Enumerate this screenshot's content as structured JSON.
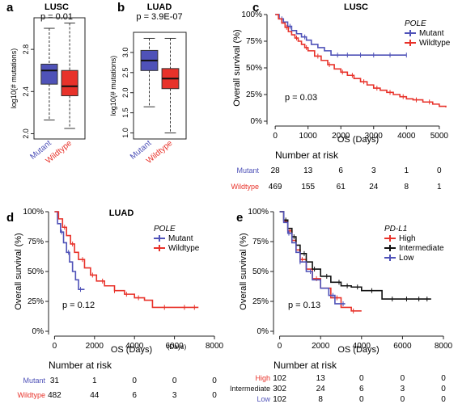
{
  "colors": {
    "mutant": "#4f52b8",
    "wildtype": "#e8322a",
    "high": "#e8322a",
    "intermediate": "#111111",
    "low": "#4f52b8",
    "axis": "#222222"
  },
  "chart_data": [
    {
      "id": "a",
      "panel_label": "a",
      "type": "box",
      "title": "LUSC",
      "subtitle": "p = 0.01",
      "ylabel": "log10(# mutations)",
      "categories": [
        "Mutant",
        "Wildtype"
      ],
      "yticks": [
        2.0,
        2.4,
        2.8
      ],
      "ylim": [
        1.95,
        3.1
      ],
      "boxes": [
        {
          "name": "Mutant",
          "whisker_low": 2.13,
          "q1": 2.47,
          "median": 2.6,
          "q3": 2.66,
          "whisker_high": 3.0
        },
        {
          "name": "Wildtype",
          "whisker_low": 2.05,
          "q1": 2.36,
          "median": 2.45,
          "q3": 2.6,
          "whisker_high": 3.05
        }
      ]
    },
    {
      "id": "b",
      "panel_label": "b",
      "type": "box",
      "title": "LUAD",
      "subtitle": "p = 3.9E-07",
      "ylabel": "log10(# mutations)",
      "categories": [
        "Mutant",
        "Wildtype"
      ],
      "yticks": [
        1.0,
        1.5,
        2.0,
        2.5,
        3.0
      ],
      "ylim": [
        0.85,
        3.5
      ],
      "boxes": [
        {
          "name": "Mutant",
          "whisker_low": 1.65,
          "q1": 2.55,
          "median": 2.8,
          "q3": 3.05,
          "whisker_high": 3.35
        },
        {
          "name": "Wildtype",
          "whisker_low": 1.0,
          "q1": 2.1,
          "median": 2.35,
          "q3": 2.6,
          "whisker_high": 3.35
        }
      ]
    },
    {
      "id": "c",
      "panel_label": "c",
      "type": "line",
      "title": "LUSC",
      "xlabel": "OS (Days)",
      "ylabel": "Overall survival (%)",
      "xticks": [
        0,
        1000,
        2000,
        3000,
        4000,
        5000
      ],
      "yticks": [
        "0%",
        "25%",
        "50%",
        "75%",
        "100%"
      ],
      "xlim": [
        -250,
        5300
      ],
      "ylim": [
        0,
        100
      ],
      "pvalue": "p = 0.03",
      "legend": {
        "title": "POLE",
        "position": "top-right"
      },
      "series": [
        {
          "name": "Mutant",
          "color_key": "mutant",
          "x": [
            0,
            120,
            250,
            380,
            500,
            650,
            800,
            950,
            1100,
            1300,
            1500,
            1700,
            4000
          ],
          "y": [
            100,
            96,
            93,
            89,
            85,
            82,
            79,
            76,
            72,
            69,
            66,
            62,
            62
          ],
          "censor_x": [
            200,
            450,
            900,
            1900,
            2200,
            2600,
            3000,
            3500,
            4000
          ]
        },
        {
          "name": "Wildtype",
          "color_key": "wildtype",
          "x": [
            0,
            100,
            200,
            300,
            400,
            500,
            600,
            700,
            800,
            900,
            1000,
            1200,
            1400,
            1600,
            1800,
            2000,
            2200,
            2400,
            2600,
            2800,
            3000,
            3200,
            3400,
            3600,
            3800,
            4000,
            4200,
            4500,
            4800,
            5000,
            5200
          ],
          "y": [
            100,
            96,
            92,
            88,
            84,
            81,
            78,
            75,
            72,
            69,
            66,
            61,
            57,
            53,
            49,
            46,
            43,
            40,
            37,
            34,
            31,
            29,
            27,
            25,
            23,
            21,
            20,
            18,
            16,
            14,
            13
          ],
          "censor_x": [
            350,
            650,
            950,
            1300,
            1650,
            2050,
            2350,
            2700,
            3100,
            3500,
            3900,
            4300,
            4700
          ]
        }
      ],
      "risk_table": {
        "title": "Number at risk",
        "rows": [
          {
            "label": "Mutant",
            "color_key": "mutant",
            "values": [
              "28",
              "13",
              "6",
              "3",
              "1",
              "0"
            ]
          },
          {
            "label": "Wildtype",
            "color_key": "wildtype",
            "values": [
              "469",
              "155",
              "61",
              "24",
              "8",
              "1"
            ]
          }
        ]
      }
    },
    {
      "id": "d",
      "panel_label": "d",
      "type": "line",
      "title": "LUAD",
      "xlabel": "OS (Days)",
      "xlabel_extra": "(Days)",
      "ylabel": "Overall survival (%)",
      "xticks": [
        0,
        2000,
        4000,
        6000,
        8000
      ],
      "yticks": [
        "0%",
        "25%",
        "50%",
        "75%",
        "100%"
      ],
      "xlim": [
        -300,
        8000
      ],
      "ylim": [
        0,
        100
      ],
      "pvalue": "p = 0.12",
      "legend": {
        "title": "POLE",
        "position": "top-right"
      },
      "series": [
        {
          "name": "Mutant",
          "color_key": "mutant",
          "x": [
            0,
            150,
            300,
            450,
            600,
            750,
            900,
            1050,
            1200,
            1500
          ],
          "y": [
            100,
            90,
            83,
            74,
            66,
            58,
            50,
            43,
            35,
            35
          ],
          "censor_x": [
            350,
            700,
            1300
          ]
        },
        {
          "name": "Wildtype",
          "color_key": "wildtype",
          "x": [
            0,
            200,
            400,
            600,
            800,
            1000,
            1200,
            1500,
            1800,
            2100,
            2500,
            3000,
            3500,
            4000,
            4500,
            4900,
            7200
          ],
          "y": [
            100,
            94,
            87,
            80,
            73,
            66,
            60,
            53,
            47,
            42,
            38,
            34,
            31,
            28,
            26,
            20,
            20
          ],
          "censor_x": [
            500,
            900,
            1400,
            1900,
            2400,
            3000,
            3600,
            4200,
            5500,
            6500,
            7000
          ]
        }
      ],
      "risk_table": {
        "title": "Number at risk",
        "rows": [
          {
            "label": "Mutant",
            "color_key": "mutant",
            "values": [
              "31",
              "1",
              "0",
              "0",
              "0"
            ]
          },
          {
            "label": "Wildtype",
            "color_key": "wildtype",
            "values": [
              "482",
              "44",
              "6",
              "3",
              "0"
            ]
          }
        ]
      }
    },
    {
      "id": "e",
      "panel_label": "e",
      "type": "line",
      "title": "",
      "xlabel": "OS (Days)",
      "ylabel": "Overall survival (%)",
      "xticks": [
        0,
        2000,
        4000,
        6000,
        8000
      ],
      "yticks": [
        "0%",
        "25%",
        "50%",
        "75%",
        "100%"
      ],
      "xlim": [
        -300,
        8000
      ],
      "ylim": [
        0,
        100
      ],
      "pvalue": "p = 0.13",
      "legend": {
        "title": "PD-L1",
        "position": "top-right"
      },
      "series": [
        {
          "name": "High",
          "color_key": "high",
          "x": [
            0,
            200,
            400,
            600,
            800,
            1000,
            1300,
            1600,
            2000,
            2500,
            3000,
            3500,
            4000
          ],
          "y": [
            100,
            92,
            84,
            76,
            68,
            60,
            52,
            44,
            36,
            28,
            20,
            17,
            17
          ],
          "censor_x": [
            500,
            1100,
            1800,
            2800,
            3600
          ]
        },
        {
          "name": "Intermediate",
          "color_key": "intermediate",
          "x": [
            0,
            200,
            400,
            600,
            800,
            1000,
            1300,
            1600,
            2000,
            2500,
            3000,
            3500,
            4000,
            5000,
            7400
          ],
          "y": [
            100,
            93,
            86,
            79,
            72,
            65,
            58,
            52,
            46,
            41,
            38,
            37,
            34,
            27,
            27
          ],
          "censor_x": [
            300,
            700,
            1200,
            1700,
            2300,
            2900,
            3300,
            3800,
            4500,
            5500,
            6200,
            6800,
            7200
          ]
        },
        {
          "name": "Low",
          "color_key": "low",
          "x": [
            0,
            200,
            400,
            600,
            800,
            1000,
            1300,
            1600,
            2000,
            2400,
            2700,
            3200
          ],
          "y": [
            100,
            91,
            82,
            74,
            66,
            58,
            50,
            43,
            36,
            30,
            23,
            23
          ],
          "censor_x": [
            450,
            1000,
            1500,
            2600,
            3100
          ]
        }
      ],
      "risk_table": {
        "title": "Number at risk",
        "rows": [
          {
            "label": "High",
            "color_key": "high",
            "values": [
              "102",
              "13",
              "0",
              "0",
              "0"
            ]
          },
          {
            "label": "Intermediate",
            "color_key": "intermediate",
            "values": [
              "302",
              "24",
              "6",
              "3",
              "0"
            ]
          },
          {
            "label": "Low",
            "color_key": "low",
            "values": [
              "102",
              "8",
              "0",
              "0",
              "0"
            ]
          }
        ]
      }
    }
  ]
}
